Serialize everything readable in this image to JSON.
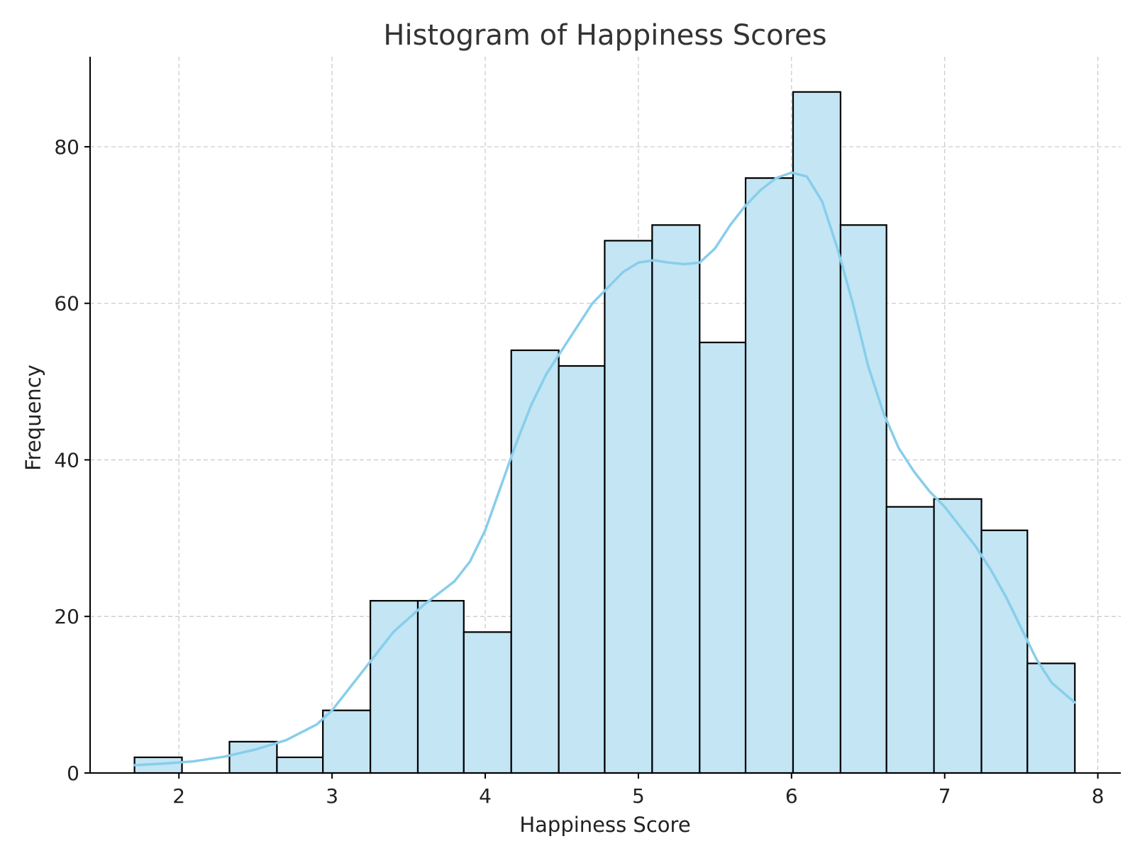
{
  "chart_data": {
    "type": "bar",
    "subtype": "histogram",
    "title": "Histogram of Happiness Scores",
    "xlabel": "Happiness Score",
    "ylabel": "Frequency",
    "xlim": [
      1.42,
      8.15
    ],
    "ylim": [
      0,
      91.5
    ],
    "xticks": [
      2,
      3,
      4,
      5,
      6,
      7,
      8
    ],
    "yticks": [
      0,
      20,
      40,
      60,
      80
    ],
    "grid": true,
    "legend": "none",
    "bar_color": "#c3e5f4",
    "edge_color": "#000000",
    "kde_color": "#87ceeb",
    "bins": [
      {
        "x0": 1.71,
        "x1": 2.02,
        "count": 2
      },
      {
        "x0": 2.02,
        "x1": 2.33,
        "count": 0
      },
      {
        "x0": 2.33,
        "x1": 2.64,
        "count": 4
      },
      {
        "x0": 2.64,
        "x1": 2.94,
        "count": 2
      },
      {
        "x0": 2.94,
        "x1": 3.25,
        "count": 8
      },
      {
        "x0": 3.25,
        "x1": 3.56,
        "count": 22
      },
      {
        "x0": 3.56,
        "x1": 3.86,
        "count": 22
      },
      {
        "x0": 3.86,
        "x1": 4.17,
        "count": 18
      },
      {
        "x0": 4.17,
        "x1": 4.48,
        "count": 54
      },
      {
        "x0": 4.48,
        "x1": 4.78,
        "count": 52
      },
      {
        "x0": 4.78,
        "x1": 5.09,
        "count": 68
      },
      {
        "x0": 5.09,
        "x1": 5.4,
        "count": 70
      },
      {
        "x0": 5.4,
        "x1": 5.7,
        "count": 55
      },
      {
        "x0": 5.7,
        "x1": 6.01,
        "count": 76
      },
      {
        "x0": 6.01,
        "x1": 6.32,
        "count": 87
      },
      {
        "x0": 6.32,
        "x1": 6.62,
        "count": 70
      },
      {
        "x0": 6.62,
        "x1": 6.93,
        "count": 34
      },
      {
        "x0": 6.93,
        "x1": 7.24,
        "count": 35
      },
      {
        "x0": 7.24,
        "x1": 7.54,
        "count": 31
      },
      {
        "x0": 7.54,
        "x1": 7.85,
        "count": 14
      }
    ],
    "kde": {
      "x": [
        1.71,
        1.9,
        2.1,
        2.3,
        2.5,
        2.7,
        2.9,
        3.0,
        3.2,
        3.4,
        3.6,
        3.8,
        3.9,
        4.0,
        4.1,
        4.2,
        4.3,
        4.4,
        4.5,
        4.7,
        4.9,
        5.0,
        5.1,
        5.2,
        5.3,
        5.4,
        5.5,
        5.6,
        5.7,
        5.8,
        5.9,
        6.0,
        6.1,
        6.2,
        6.3,
        6.4,
        6.5,
        6.6,
        6.7,
        6.8,
        6.9,
        7.0,
        7.1,
        7.2,
        7.3,
        7.4,
        7.5,
        7.6,
        7.7,
        7.85
      ],
      "y": [
        1,
        1.2,
        1.5,
        2.1,
        3,
        4.2,
        6.2,
        8,
        13,
        18,
        21.5,
        24.5,
        27,
        31,
        36.5,
        42,
        47,
        51,
        54,
        60,
        64,
        65.2,
        65.5,
        65.2,
        65,
        65.2,
        67,
        70,
        72.5,
        74.5,
        76,
        76.7,
        76.2,
        73,
        67,
        60,
        52,
        46,
        41.5,
        38.5,
        36,
        34,
        31.5,
        29,
        26,
        22.5,
        18.5,
        14.5,
        11.5,
        9
      ]
    }
  }
}
